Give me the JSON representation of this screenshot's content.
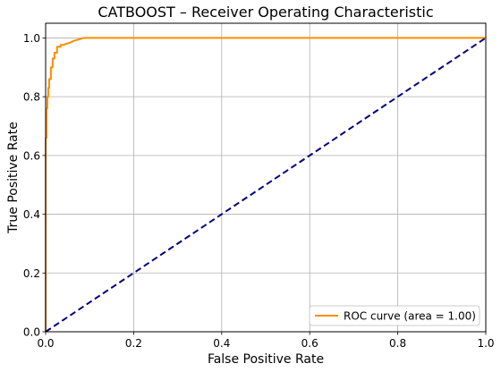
{
  "chart_data": {
    "type": "line",
    "title": "CATBOOST – Receiver Operating Characteristic",
    "xlabel": "False Positive Rate",
    "ylabel": "True Positive Rate",
    "xlim": [
      0.0,
      1.0
    ],
    "ylim": [
      0.0,
      1.05
    ],
    "x_ticks": [
      "0.0",
      "0.2",
      "0.4",
      "0.6",
      "0.8",
      "1.0"
    ],
    "y_ticks": [
      "0.0",
      "0.2",
      "0.4",
      "0.6",
      "0.8",
      "1.0"
    ],
    "grid": true,
    "legend_position": "lower-right",
    "series": [
      {
        "name": "ROC curve (area = 1.00)",
        "color": "#ff8c00",
        "style": "solid",
        "x": [
          0.0,
          0.0,
          0.002,
          0.002,
          0.004,
          0.004,
          0.006,
          0.006,
          0.008,
          0.008,
          0.012,
          0.012,
          0.016,
          0.016,
          0.02,
          0.02,
          0.026,
          0.026,
          0.034,
          0.034,
          0.04,
          0.046,
          0.052,
          0.058,
          0.064,
          0.07,
          0.076,
          0.082,
          0.086,
          0.09,
          0.2,
          0.4,
          0.6,
          0.8,
          1.0
        ],
        "y": [
          0.0,
          0.66,
          0.66,
          0.76,
          0.76,
          0.8,
          0.8,
          0.83,
          0.83,
          0.86,
          0.86,
          0.9,
          0.9,
          0.93,
          0.93,
          0.95,
          0.95,
          0.97,
          0.97,
          0.976,
          0.976,
          0.98,
          0.982,
          0.986,
          0.99,
          0.993,
          0.995,
          0.998,
          1.0,
          1.0,
          1.0,
          1.0,
          1.0,
          1.0,
          1.0
        ]
      },
      {
        "name": "",
        "color": "#000080",
        "style": "dashed",
        "x": [
          0.0,
          1.0
        ],
        "y": [
          0.0,
          1.0
        ]
      }
    ]
  }
}
